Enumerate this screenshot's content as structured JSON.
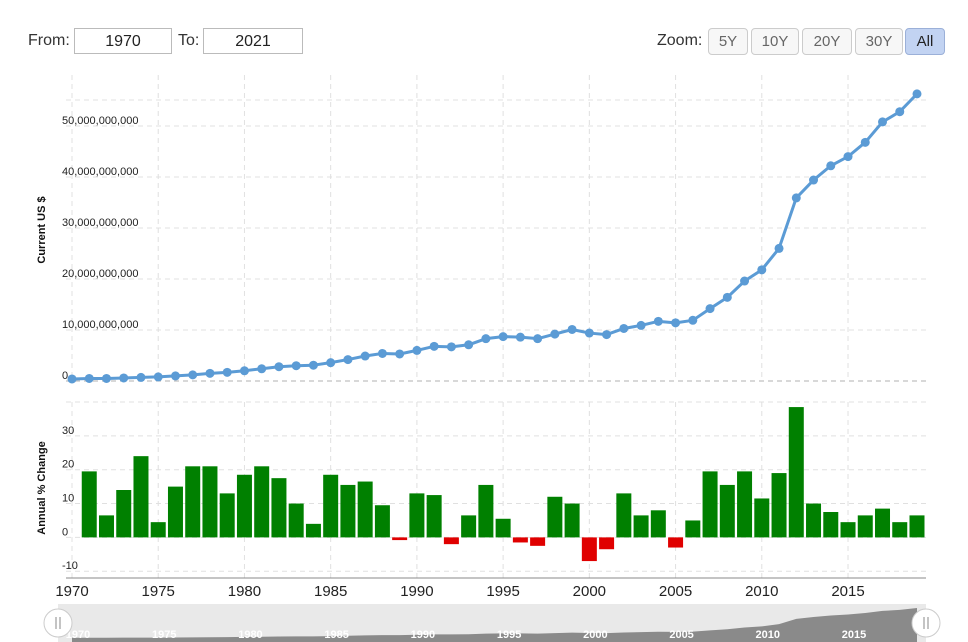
{
  "controls": {
    "from_label": "From:",
    "from_value": "1970",
    "to_label": "To:",
    "to_value": "2021",
    "zoom_label": "Zoom:",
    "zoom_buttons": [
      "5Y",
      "10Y",
      "20Y",
      "30Y",
      "All"
    ],
    "zoom_active": "All"
  },
  "colors": {
    "line": "#5b9bd5",
    "positive_bar": "#008000",
    "negative_bar": "#e00000",
    "grid": "#e0e0e0",
    "navigator_fill": "#8a8a8a"
  },
  "chart_data": [
    {
      "type": "line",
      "ylabel": "Current US $",
      "ylim": [
        0,
        60000000000
      ],
      "y_ticks": [
        "0",
        "10,000,000,000",
        "20,000,000,000",
        "30,000,000,000",
        "40,000,000,000",
        "50,000,000,000"
      ],
      "y_tick_values": [
        0,
        10000000000,
        20000000000,
        30000000000,
        40000000000,
        50000000000
      ],
      "grid": true,
      "x": [
        1970,
        1971,
        1972,
        1973,
        1974,
        1975,
        1976,
        1977,
        1978,
        1979,
        1980,
        1981,
        1982,
        1983,
        1984,
        1985,
        1986,
        1987,
        1988,
        1989,
        1990,
        1991,
        1992,
        1993,
        1994,
        1995,
        1996,
        1997,
        1998,
        1999,
        2000,
        2001,
        2002,
        2003,
        2004,
        2005,
        2006,
        2007,
        2008,
        2009,
        2010,
        2011,
        2012,
        2013,
        2014,
        2015,
        2016,
        2017,
        2018,
        2019
      ],
      "y": [
        400000000,
        500000000,
        500000000,
        600000000,
        700000000,
        800000000,
        1000000000,
        1200000000,
        1500000000,
        1700000000,
        2000000000,
        2400000000,
        2800000000,
        3000000000,
        3100000000,
        3600000000,
        4200000000,
        4900000000,
        5400000000,
        5300000000,
        6000000000,
        6800000000,
        6700000000,
        7100000000,
        8300000000,
        8700000000,
        8600000000,
        8300000000,
        9200000000,
        10100000000,
        9400000000,
        9100000000,
        10300000000,
        10900000000,
        11700000000,
        11400000000,
        11900000000,
        14200000000,
        16400000000,
        19600000000,
        21800000000,
        26000000000,
        35900000000,
        39400000000,
        42200000000,
        44000000000,
        46800000000,
        50800000000,
        52800000000,
        56300000000
      ]
    },
    {
      "type": "bar",
      "ylabel": "Annual % Change",
      "ylim": [
        -12,
        40
      ],
      "y_ticks": [
        "-10",
        "0",
        "10",
        "20",
        "30"
      ],
      "y_tick_values": [
        -10,
        0,
        10,
        20,
        30
      ],
      "grid": true,
      "x": [
        1971,
        1972,
        1973,
        1974,
        1975,
        1976,
        1977,
        1978,
        1979,
        1980,
        1981,
        1982,
        1983,
        1984,
        1985,
        1986,
        1987,
        1988,
        1989,
        1990,
        1991,
        1992,
        1993,
        1994,
        1995,
        1996,
        1997,
        1998,
        1999,
        2000,
        2001,
        2002,
        2003,
        2004,
        2005,
        2006,
        2007,
        2008,
        2009,
        2010,
        2011,
        2012,
        2013,
        2014,
        2015,
        2016,
        2017,
        2018,
        2019
      ],
      "values": [
        19.5,
        6.5,
        14,
        24,
        4.5,
        15,
        21,
        21,
        13,
        18.5,
        21,
        17.5,
        10,
        4,
        18.5,
        15.5,
        16.5,
        9.5,
        -0.8,
        13,
        12.5,
        -2,
        6.5,
        15.5,
        5.5,
        -1.5,
        -2.5,
        12,
        10,
        -7,
        -3.5,
        13,
        6.5,
        8,
        -3,
        5,
        19.5,
        15.5,
        19.5,
        11.5,
        19,
        38.5,
        10,
        7.5,
        4.5,
        6.5,
        8.5,
        4.5,
        6.5
      ]
    }
  ],
  "x_axis": {
    "ticks": [
      "1970",
      "1975",
      "1980",
      "1985",
      "1990",
      "1995",
      "2000",
      "2005",
      "2010",
      "2015"
    ],
    "tick_values": [
      1970,
      1975,
      1980,
      1985,
      1990,
      1995,
      2000,
      2005,
      2010,
      2015
    ],
    "range": [
      1970,
      2021
    ]
  },
  "navigator": {
    "ticks": [
      "1970",
      "1975",
      "1980",
      "1985",
      "1990",
      "1995",
      "2000",
      "2005",
      "2010",
      "2015"
    ],
    "handle_icon": "grip-lines-icon"
  }
}
